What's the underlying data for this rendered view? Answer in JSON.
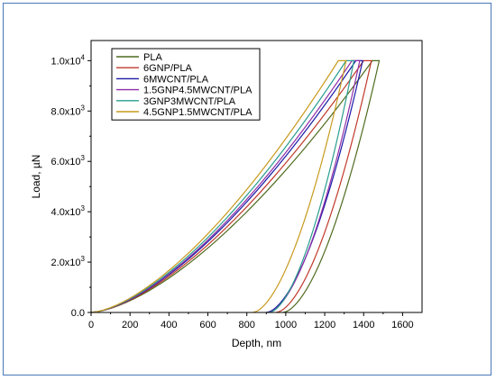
{
  "chart_data": {
    "type": "line",
    "title": "",
    "xlabel": "Depth, nm",
    "ylabel": "Load, µN",
    "xlim": [
      0,
      1700
    ],
    "ylim": [
      0,
      10800
    ],
    "x_ticks": [
      0,
      200,
      400,
      600,
      800,
      1000,
      1200,
      1400,
      1600
    ],
    "x_tick_labels": [
      "0",
      "200",
      "400",
      "600",
      "800",
      "1000",
      "1200",
      "1400",
      "1600"
    ],
    "y_ticks": [
      0,
      2000,
      4000,
      6000,
      8000,
      10000
    ],
    "y_tick_labels": [
      {
        "base": "0.0",
        "exp": ""
      },
      {
        "base": "2.0x10",
        "exp": "3"
      },
      {
        "base": "4.0x10",
        "exp": "3"
      },
      {
        "base": "6.0x10",
        "exp": "3"
      },
      {
        "base": "8.0x10",
        "exp": "3"
      },
      {
        "base": "1.0x10",
        "exp": "4"
      }
    ],
    "legend_position": "top-left",
    "max_load": 10000,
    "series": [
      {
        "name": "PLA",
        "color": "#4f6b1f",
        "max_depth": 1445,
        "hold_end": 1480,
        "residual_depth": 985
      },
      {
        "name": "6GNP/PLA",
        "color": "#c0392b",
        "max_depth": 1400,
        "hold_end": 1440,
        "residual_depth": 950
      },
      {
        "name": "6MWCNT/PLA",
        "color": "#1a1aa6",
        "max_depth": 1360,
        "hold_end": 1395,
        "residual_depth": 900
      },
      {
        "name": "1.5GNP4.5MWCNT/PLA",
        "color": "#8e2fa8",
        "max_depth": 1340,
        "hold_end": 1380,
        "residual_depth": 910
      },
      {
        "name": "3GNP3MWCNT/PLA",
        "color": "#2a9d8f",
        "max_depth": 1310,
        "hold_end": 1350,
        "residual_depth": 915
      },
      {
        "name": "4.5GNP1.5MWCNT/PLA",
        "color": "#c79a1e",
        "max_depth": 1270,
        "hold_end": 1310,
        "residual_depth": 830
      }
    ]
  }
}
